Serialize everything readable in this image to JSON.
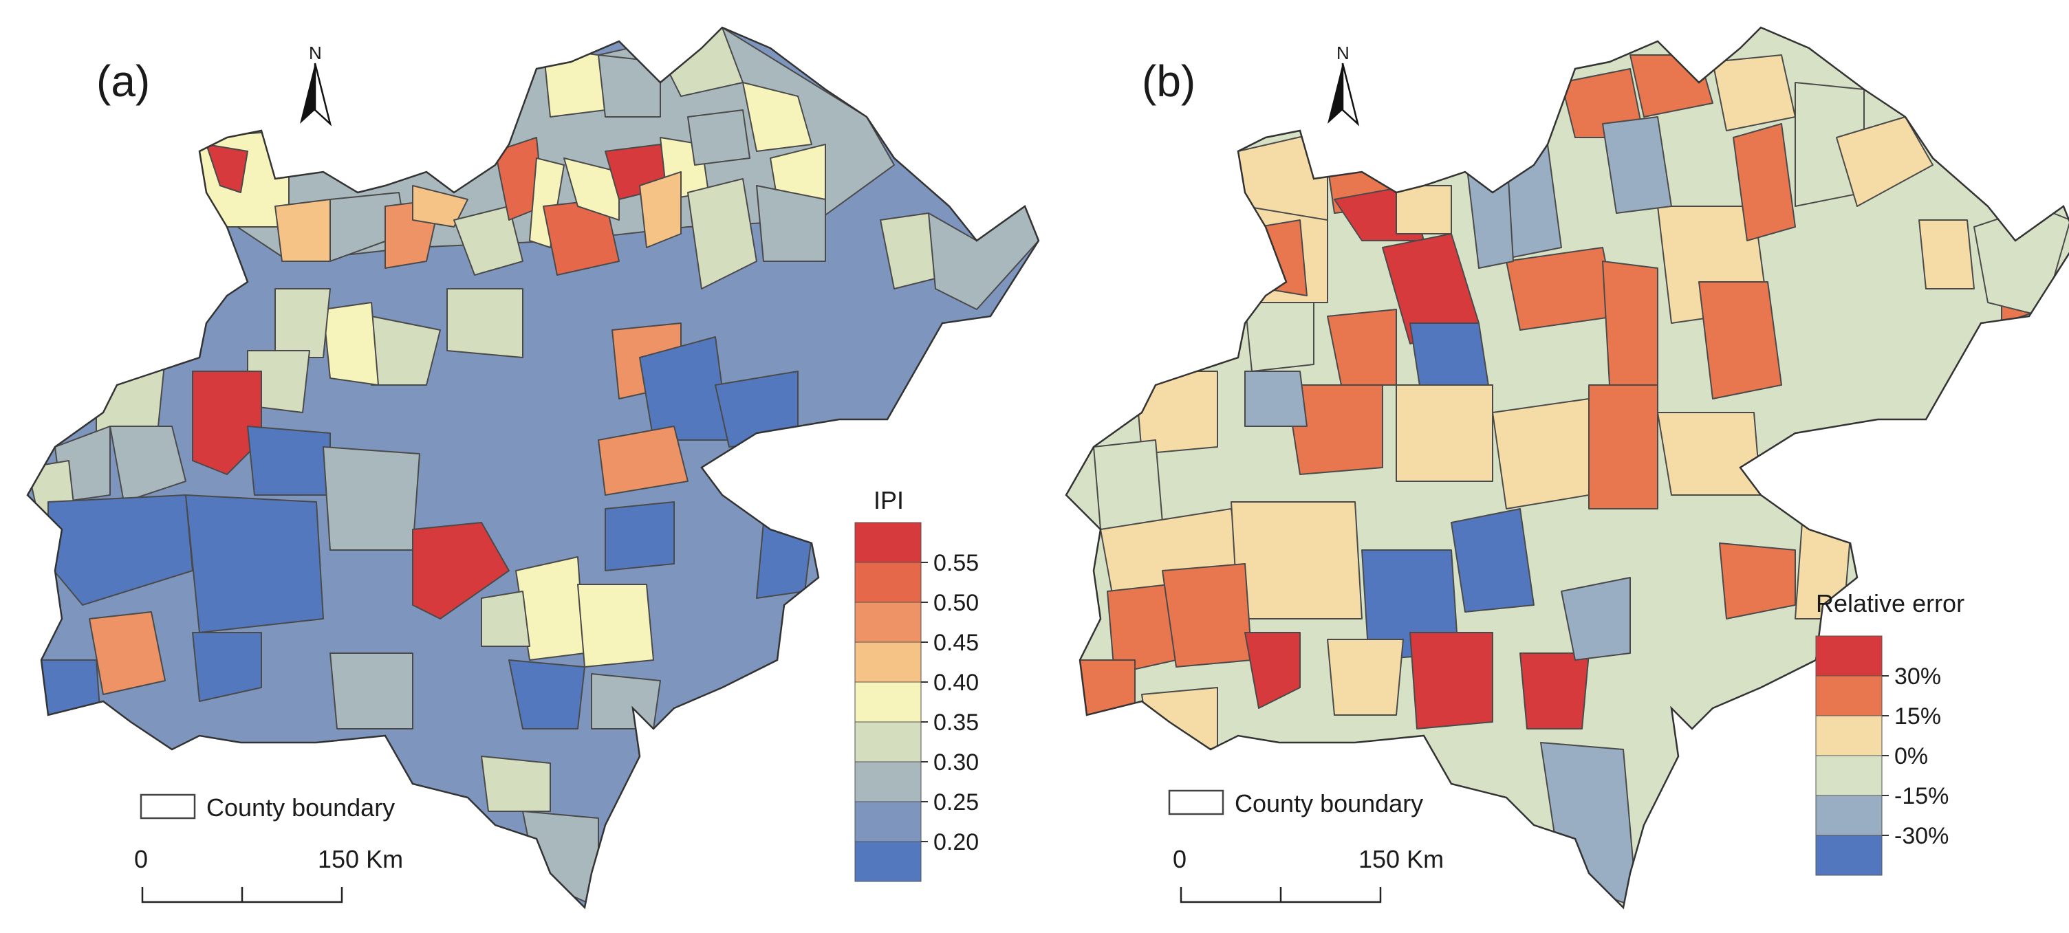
{
  "panels": [
    {
      "id": "a",
      "label": "(a)",
      "north": "N",
      "legend": {
        "title": "IPI",
        "colors": [
          "#d63a3c",
          "#e5684a",
          "#ee9365",
          "#f6c387",
          "#f7f4bb",
          "#d5ddbf",
          "#a9b8bd",
          "#7e96bd",
          "#5378be"
        ],
        "ticks": [
          "0.55",
          "0.50",
          "0.45",
          "0.40",
          "0.35",
          "0.30",
          "0.25",
          "0.20"
        ]
      },
      "boundary_label": "County boundary",
      "scale": {
        "start": "0",
        "end": "150 Km"
      }
    },
    {
      "id": "b",
      "label": "(b)",
      "north": "N",
      "legend": {
        "title": "Relative error",
        "colors": [
          "#d63a3c",
          "#e8774f",
          "#f5dca6",
          "#d7e1c6",
          "#99adc3",
          "#5377be"
        ],
        "ticks": [
          "30%",
          "15%",
          "0%",
          "-15%",
          "-30%"
        ]
      },
      "boundary_label": "County boundary",
      "scale": {
        "start": "0",
        "end": "150 Km"
      }
    }
  ]
}
